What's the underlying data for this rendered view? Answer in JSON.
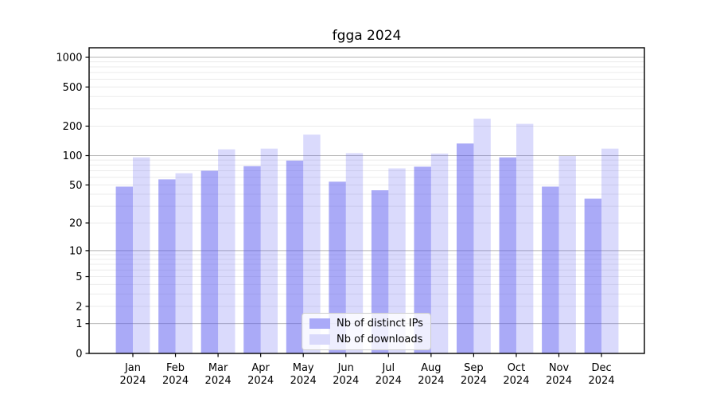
{
  "figure": {
    "title": "fgga 2024"
  },
  "chart_data": {
    "type": "bar",
    "title": "fgga 2024",
    "categories": [
      "Jan 2024",
      "Feb 2024",
      "Mar 2024",
      "Apr 2024",
      "May 2024",
      "Jun 2024",
      "Jul 2024",
      "Aug 2024",
      "Sep 2024",
      "Oct 2024",
      "Nov 2024",
      "Dec 2024"
    ],
    "series": [
      {
        "name": "Nb of distinct IPs",
        "values": [
          48,
          57,
          70,
          78,
          89,
          54,
          44,
          77,
          133,
          96,
          48,
          36
        ],
        "color": "#5656f0",
        "fill_opacity": 0.5,
        "solid_color": "#aaaaf8"
      },
      {
        "name": "Nb of downloads",
        "values": [
          96,
          66,
          116,
          118,
          164,
          106,
          74,
          105,
          238,
          211,
          99,
          118
        ],
        "color": "#5656f0",
        "fill_opacity": 0.22,
        "solid_color": "#d9d9fb"
      }
    ],
    "xlabel": "",
    "ylabel": "",
    "y_scale": "log1p",
    "y_ticks": [
      0,
      1,
      2,
      5,
      10,
      20,
      50,
      100,
      200,
      500,
      1000
    ],
    "ylim": [
      0,
      1250
    ],
    "grid": true,
    "legend_position": "lower-center",
    "colors": {
      "major_grid": "#b5b5b5",
      "minor_grid": "#ebebeb",
      "axis": "#000000",
      "text": "#000000"
    }
  }
}
